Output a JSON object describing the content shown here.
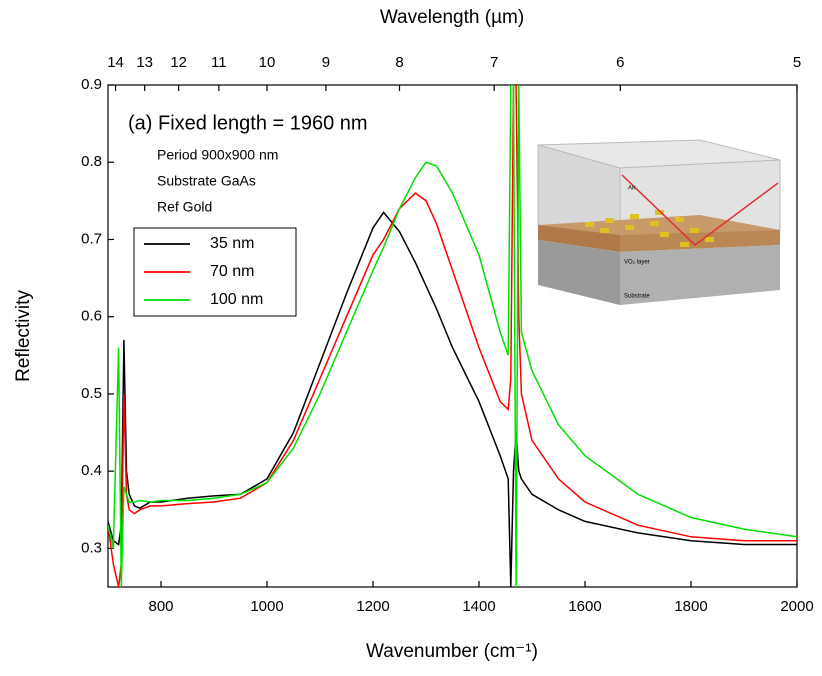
{
  "chart_data": {
    "type": "line",
    "x_label": "Wavenumber (cm⁻¹)",
    "y_label": "Reflectivity",
    "x2_label": "Wavelength (µm)",
    "annotations": [
      "(a) Fixed length = 1960 nm",
      "Period 900x900 nm",
      "Substrate GaAs",
      "Ref Gold"
    ],
    "inset_labels": [
      "Air",
      "VO₂ layer",
      "Substrate"
    ],
    "x": [
      700,
      710,
      720,
      725,
      730,
      735,
      740,
      750,
      760,
      780,
      800,
      850,
      900,
      950,
      1000,
      1050,
      1100,
      1150,
      1200,
      1220,
      1250,
      1280,
      1300,
      1320,
      1350,
      1400,
      1440,
      1455,
      1460,
      1465,
      1470,
      1475,
      1480,
      1500,
      1550,
      1600,
      1700,
      1800,
      1900,
      2000
    ],
    "series": [
      {
        "name": "35 nm",
        "color": "#000000",
        "values": [
          0.335,
          0.31,
          0.305,
          0.33,
          0.57,
          0.4,
          0.37,
          0.355,
          0.352,
          0.36,
          0.36,
          0.365,
          0.368,
          0.37,
          0.39,
          0.45,
          0.54,
          0.63,
          0.715,
          0.735,
          0.71,
          0.67,
          0.64,
          0.61,
          0.56,
          0.49,
          0.42,
          0.39,
          0.25,
          0.4,
          0.45,
          0.4,
          0.39,
          0.37,
          0.35,
          0.335,
          0.32,
          0.31,
          0.305,
          0.305
        ]
      },
      {
        "name": "70 nm",
        "color": "#ff0000",
        "values": [
          0.33,
          0.28,
          0.25,
          0.28,
          0.5,
          0.37,
          0.35,
          0.345,
          0.35,
          0.355,
          0.355,
          0.358,
          0.36,
          0.365,
          0.385,
          0.44,
          0.52,
          0.6,
          0.68,
          0.7,
          0.74,
          0.76,
          0.75,
          0.72,
          0.66,
          0.56,
          0.49,
          0.48,
          0.52,
          0.9,
          0.9,
          0.6,
          0.5,
          0.44,
          0.39,
          0.36,
          0.33,
          0.315,
          0.31,
          0.31
        ]
      },
      {
        "name": "100 nm",
        "color": "#00e000",
        "values": [
          0.33,
          0.3,
          0.56,
          0.25,
          0.38,
          0.37,
          0.36,
          0.36,
          0.362,
          0.36,
          0.362,
          0.362,
          0.365,
          0.37,
          0.385,
          0.43,
          0.5,
          0.58,
          0.66,
          0.69,
          0.74,
          0.78,
          0.8,
          0.795,
          0.76,
          0.68,
          0.58,
          0.55,
          0.9,
          0.9,
          0.25,
          0.9,
          0.58,
          0.53,
          0.46,
          0.42,
          0.37,
          0.34,
          0.325,
          0.315
        ]
      }
    ],
    "xlim": [
      700,
      2000
    ],
    "xticks": [
      800,
      1000,
      1200,
      1400,
      1600,
      1800,
      2000
    ],
    "ylim": [
      0.25,
      0.9
    ],
    "yticks": [
      0.3,
      0.4,
      0.5,
      0.6,
      0.7,
      0.8,
      0.9
    ],
    "x2ticks": [
      14,
      13,
      12,
      11,
      10,
      9,
      8,
      7,
      6,
      5
    ],
    "x2_scale": "reciprocal",
    "legend": "upper left",
    "grid": false
  }
}
